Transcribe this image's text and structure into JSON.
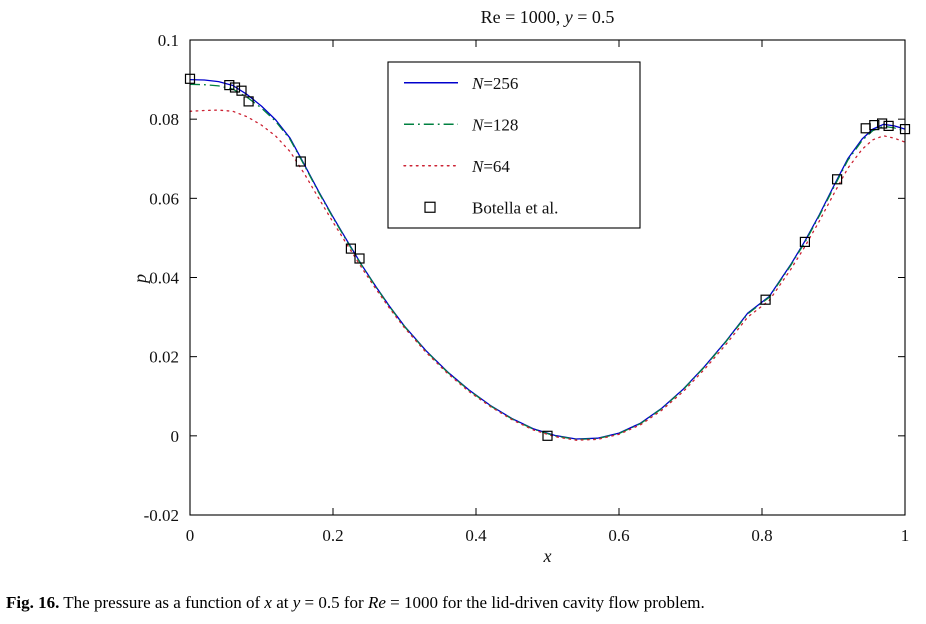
{
  "figure": {
    "title_parts": [
      {
        "text": "Re = 1000, ",
        "italic": false
      },
      {
        "text": "y",
        "italic": true
      },
      {
        "text": " = 0.5",
        "italic": false
      }
    ],
    "ylabel_parts": [
      {
        "text": "p",
        "italic": true
      }
    ],
    "xlabel_parts": [
      {
        "text": "x",
        "italic": true
      }
    ],
    "caption_parts": [
      {
        "text": "Fig. 16.",
        "bold": true
      },
      {
        "text": " The pressure as a function of "
      },
      {
        "text": "x",
        "italic": true
      },
      {
        "text": " at "
      },
      {
        "text": "y",
        "italic": true
      },
      {
        "text": " = 0.5 for "
      },
      {
        "text": "Re",
        "italic": true
      },
      {
        "text": " = 1000 for the lid-driven cavity flow problem."
      }
    ]
  },
  "chart_data": {
    "type": "line",
    "title": "Re = 1000, y = 0.5",
    "xlabel": "x",
    "ylabel": "p",
    "xlim": [
      0,
      1
    ],
    "ylim": [
      -0.02,
      0.1
    ],
    "grid": false,
    "legend_position": "upper center-left inside box",
    "xticks": {
      "values": [
        0,
        0.2,
        0.4,
        0.6,
        0.8,
        1
      ],
      "labels": [
        "0",
        "0.2",
        "0.4",
        "0.6",
        "0.8",
        "1"
      ]
    },
    "yticks": {
      "values": [
        -0.02,
        0,
        0.02,
        0.04,
        0.06,
        0.08,
        0.1
      ],
      "labels": [
        "-0.02",
        "0",
        "0.02",
        "0.04",
        "0.06",
        "0.08",
        "0.1"
      ]
    },
    "series": [
      {
        "name": "N=256",
        "name_parts": [
          {
            "text": "N",
            "italic": true
          },
          {
            "text": "=256"
          }
        ],
        "style": "solid",
        "color": "#0000CC",
        "x": [
          0.0,
          0.02,
          0.04,
          0.06,
          0.08,
          0.1,
          0.12,
          0.14,
          0.16,
          0.18,
          0.2,
          0.22,
          0.24,
          0.26,
          0.28,
          0.3,
          0.33,
          0.36,
          0.39,
          0.42,
          0.45,
          0.48,
          0.51,
          0.54,
          0.57,
          0.6,
          0.63,
          0.66,
          0.69,
          0.72,
          0.75,
          0.78,
          0.81,
          0.84,
          0.86,
          0.88,
          0.9,
          0.92,
          0.94,
          0.955,
          0.97,
          0.985,
          1.0
        ],
        "y": [
          0.09,
          0.0899,
          0.0895,
          0.0885,
          0.0862,
          0.0833,
          0.0798,
          0.0752,
          0.0685,
          0.0617,
          0.0553,
          0.0492,
          0.0432,
          0.0377,
          0.0325,
          0.0277,
          0.0215,
          0.0162,
          0.0116,
          0.0077,
          0.0044,
          0.0018,
          0.0001,
          -0.0008,
          -0.0006,
          0.0007,
          0.0032,
          0.007,
          0.0118,
          0.0176,
          0.024,
          0.031,
          0.0352,
          0.0432,
          0.0492,
          0.0558,
          0.063,
          0.07,
          0.075,
          0.0775,
          0.0787,
          0.0783,
          0.0775
        ]
      },
      {
        "name": "N=128",
        "name_parts": [
          {
            "text": "N",
            "italic": true
          },
          {
            "text": "=128"
          }
        ],
        "style": "dashdot",
        "color": "#008040",
        "x": [
          0.0,
          0.02,
          0.04,
          0.06,
          0.08,
          0.1,
          0.12,
          0.14,
          0.16,
          0.18,
          0.2,
          0.22,
          0.24,
          0.26,
          0.28,
          0.3,
          0.33,
          0.36,
          0.39,
          0.42,
          0.45,
          0.48,
          0.51,
          0.54,
          0.57,
          0.6,
          0.63,
          0.66,
          0.69,
          0.72,
          0.75,
          0.78,
          0.81,
          0.84,
          0.86,
          0.88,
          0.9,
          0.92,
          0.94,
          0.955,
          0.97,
          0.985,
          1.0
        ],
        "y": [
          0.0888,
          0.0887,
          0.0884,
          0.0876,
          0.0855,
          0.0828,
          0.0794,
          0.0749,
          0.0683,
          0.0615,
          0.0551,
          0.049,
          0.0431,
          0.0376,
          0.0324,
          0.0276,
          0.0214,
          0.0161,
          0.0115,
          0.0076,
          0.0043,
          0.0017,
          0.0,
          -0.0009,
          -0.0007,
          0.0006,
          0.0031,
          0.0069,
          0.0117,
          0.0175,
          0.0239,
          0.0308,
          0.035,
          0.043,
          0.0489,
          0.0555,
          0.0626,
          0.0696,
          0.0746,
          0.0771,
          0.0782,
          0.0778,
          0.077
        ]
      },
      {
        "name": "N=64",
        "name_parts": [
          {
            "text": "N",
            "italic": true
          },
          {
            "text": "=64"
          }
        ],
        "style": "dotted",
        "color": "#CC2233",
        "x": [
          0.0,
          0.02,
          0.04,
          0.06,
          0.08,
          0.1,
          0.12,
          0.14,
          0.16,
          0.18,
          0.2,
          0.22,
          0.24,
          0.26,
          0.28,
          0.3,
          0.33,
          0.36,
          0.39,
          0.42,
          0.45,
          0.48,
          0.51,
          0.54,
          0.57,
          0.6,
          0.63,
          0.66,
          0.69,
          0.72,
          0.75,
          0.78,
          0.81,
          0.84,
          0.86,
          0.88,
          0.9,
          0.92,
          0.94,
          0.955,
          0.97,
          0.985,
          1.0
        ],
        "y": [
          0.082,
          0.0822,
          0.0823,
          0.082,
          0.0806,
          0.0785,
          0.0757,
          0.0718,
          0.0662,
          0.06,
          0.054,
          0.0482,
          0.0425,
          0.0371,
          0.032,
          0.0273,
          0.0211,
          0.0158,
          0.0112,
          0.0074,
          0.0041,
          0.0015,
          -0.0002,
          -0.0011,
          -0.0009,
          0.0004,
          0.0028,
          0.0065,
          0.0112,
          0.0169,
          0.0232,
          0.03,
          0.0342,
          0.042,
          0.0478,
          0.0542,
          0.061,
          0.0676,
          0.0724,
          0.0748,
          0.0758,
          0.0752,
          0.0742
        ]
      },
      {
        "name": "Botella et al.",
        "name_parts": [
          {
            "text": "Botella et al."
          }
        ],
        "style": "squares",
        "color": "#000000",
        "x": [
          0.0,
          0.055,
          0.063,
          0.072,
          0.082,
          0.155,
          0.225,
          0.237,
          0.5,
          0.805,
          0.86,
          0.905,
          0.945,
          0.957,
          0.968,
          0.977,
          1.0
        ],
        "y": [
          0.0902,
          0.0886,
          0.088,
          0.0872,
          0.0845,
          0.0693,
          0.0473,
          0.0448,
          0.0,
          0.0344,
          0.049,
          0.0648,
          0.0777,
          0.0785,
          0.0789,
          0.0783,
          0.0775
        ]
      }
    ]
  }
}
